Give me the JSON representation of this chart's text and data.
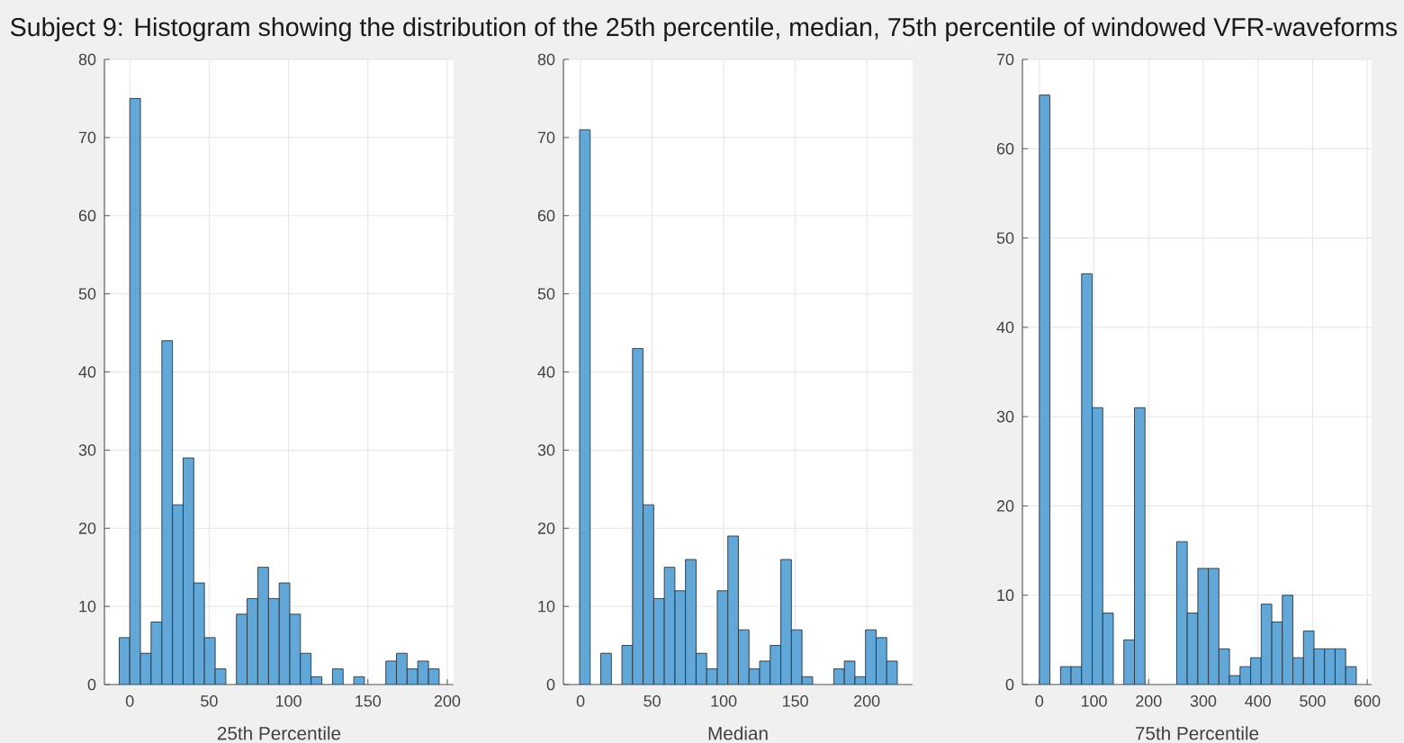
{
  "chart_data": [
    {
      "type": "histogram",
      "title": "Subject 9: Histogram showing the distribution of the 25th percentile, median, 75th percentile of windowed VFR-waveforms",
      "xlabel": "25th Percentile",
      "bins": [
        -6.7,
        0,
        6.7,
        13.4,
        20.2,
        26.9,
        33.6,
        40.3,
        47.0,
        53.8,
        60.5,
        67.2,
        73.9,
        80.6,
        87.4,
        94.1,
        100.8,
        107.5,
        114.2,
        121.0,
        127.7,
        134.4,
        141.1,
        147.8,
        154.6,
        161.3,
        168.0,
        174.7,
        181.4,
        188.2,
        194.9
      ],
      "values": [
        6,
        75,
        4,
        8,
        44,
        23,
        29,
        13,
        6,
        2,
        0,
        9,
        11,
        15,
        11,
        13,
        9,
        4,
        1,
        0,
        2,
        0,
        1,
        0,
        0,
        3,
        4,
        2,
        3,
        2
      ],
      "color": "#61a8d8",
      "xlim": [
        -16,
        204
      ],
      "ylim": [
        0,
        80
      ],
      "xticks": [
        0,
        50,
        100,
        150,
        200
      ],
      "yticks": [
        0,
        10,
        20,
        30,
        40,
        50,
        60,
        70,
        80
      ],
      "grid": true
    },
    {
      "type": "histogram",
      "xlabel": "Median",
      "bins": [
        -0.7,
        6.7,
        14.1,
        21.5,
        28.9,
        36.3,
        43.7,
        51.1,
        58.5,
        65.9,
        73.3,
        80.7,
        88.1,
        95.5,
        102.9,
        110.3,
        117.7,
        125.1,
        132.5,
        139.9,
        147.3,
        154.7,
        162.1,
        169.5,
        176.9,
        184.3,
        191.7,
        199.1,
        206.5,
        213.9,
        221.3
      ],
      "values": [
        71,
        0,
        4,
        0,
        5,
        43,
        23,
        11,
        15,
        12,
        16,
        4,
        2,
        12,
        19,
        7,
        2,
        3,
        5,
        16,
        7,
        1,
        0,
        0,
        2,
        3,
        1,
        7,
        6,
        3
      ],
      "color": "#61a8d8",
      "xlim": [
        -12,
        232
      ],
      "ylim": [
        0,
        80
      ],
      "xticks": [
        0,
        50,
        100,
        150,
        200
      ],
      "yticks": [
        0,
        10,
        20,
        30,
        40,
        50,
        60,
        70,
        80
      ],
      "grid": true
    },
    {
      "type": "histogram",
      "xlabel": "75th Percentile",
      "bins": [
        0,
        19.3,
        38.7,
        58.0,
        77.3,
        96.7,
        116.0,
        135.3,
        154.6,
        174.0,
        193.3,
        212.6,
        232.0,
        251.3,
        270.6,
        290.0,
        309.3,
        328.6,
        347.9,
        367.3,
        386.6,
        405.9,
        425.3,
        444.6,
        463.9,
        483.3,
        502.6,
        521.9,
        541.2,
        560.6,
        580.0
      ],
      "values": [
        66,
        0,
        2,
        2,
        46,
        31,
        8,
        0,
        5,
        31,
        0,
        0,
        0,
        16,
        8,
        13,
        13,
        4,
        1,
        2,
        3,
        9,
        7,
        10,
        3,
        6,
        4,
        4,
        4,
        2
      ],
      "color": "#61a8d8",
      "xlim": [
        -31,
        608
      ],
      "ylim": [
        0,
        70
      ],
      "xticks": [
        0,
        100,
        200,
        300,
        400,
        500,
        600
      ],
      "yticks": [
        0,
        10,
        20,
        30,
        40,
        50,
        60,
        70
      ],
      "grid": true
    }
  ]
}
